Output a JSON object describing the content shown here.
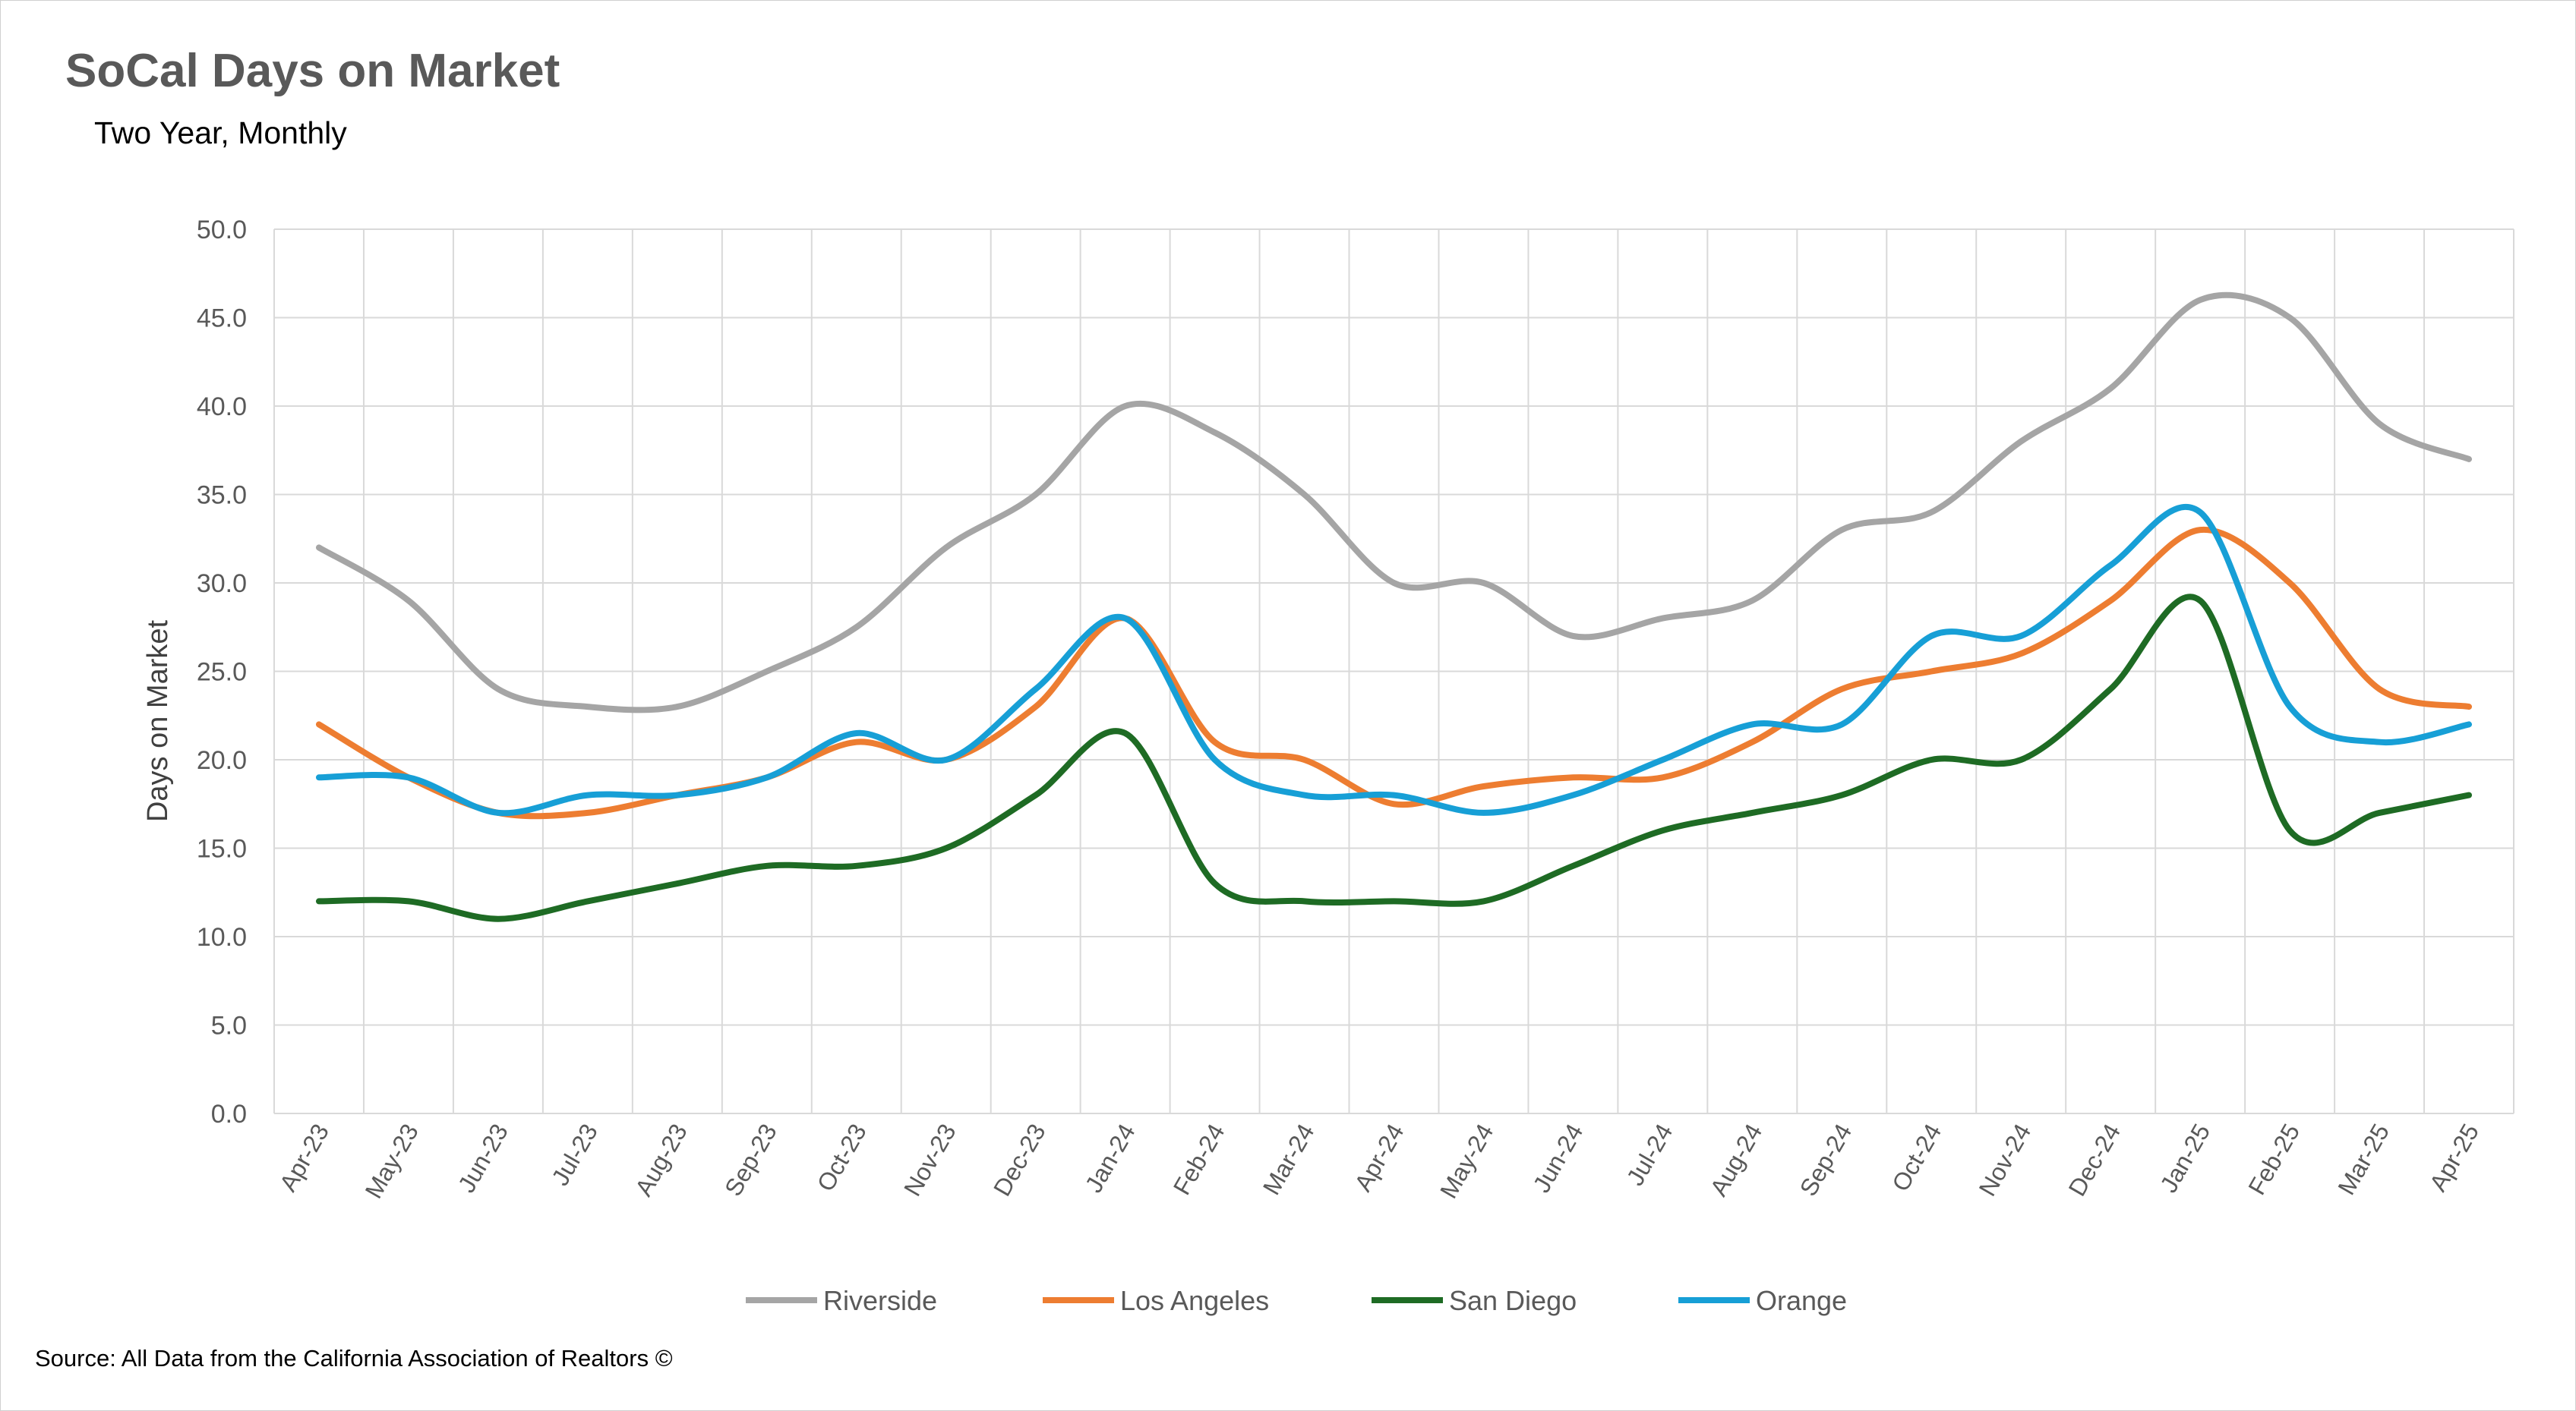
{
  "chart_data": {
    "type": "line",
    "title": "SoCal Days on Market",
    "subtitle": "Two Year, Monthly",
    "ylabel": "Days on Market",
    "xlabel": "",
    "ylim": [
      0,
      50
    ],
    "yticks": [
      "0.0",
      "5.0",
      "10.0",
      "15.0",
      "20.0",
      "25.0",
      "30.0",
      "35.0",
      "40.0",
      "45.0",
      "50.0"
    ],
    "grid": true,
    "legend_position": "bottom",
    "categories": [
      "Apr-23",
      "May-23",
      "Jun-23",
      "Jul-23",
      "Aug-23",
      "Sep-23",
      "Oct-23",
      "Nov-23",
      "Dec-23",
      "Jan-24",
      "Feb-24",
      "Mar-24",
      "Apr-24",
      "May-24",
      "Jun-24",
      "Jul-24",
      "Aug-24",
      "Sep-24",
      "Oct-24",
      "Nov-24",
      "Dec-24",
      "Jan-25",
      "Feb-25",
      "Mar-25",
      "Apr-25"
    ],
    "series": [
      {
        "name": "Riverside",
        "color": "#a5a5a5",
        "values": [
          32,
          29,
          24,
          23,
          23,
          25,
          27.5,
          32,
          35,
          40,
          38.5,
          35,
          30,
          30,
          27,
          28,
          29,
          33,
          34,
          38,
          41,
          46,
          45,
          39,
          37
        ]
      },
      {
        "name": "Los Angeles",
        "color": "#ed7d31",
        "values": [
          22,
          19,
          17,
          17,
          18,
          19,
          21,
          20,
          23,
          28,
          21,
          20,
          17.5,
          18.5,
          19,
          19,
          21,
          24,
          25,
          26,
          29,
          33,
          30,
          24,
          23
        ]
      },
      {
        "name": "San Diego",
        "color": "#1e6b24",
        "values": [
          12,
          12,
          11,
          12,
          13,
          14,
          14,
          15,
          18,
          21.5,
          13,
          12,
          12,
          12,
          14,
          16,
          17,
          18,
          20,
          20,
          24,
          29,
          16,
          17,
          18
        ]
      },
      {
        "name": "Orange",
        "color": "#179fd6",
        "values": [
          19,
          19,
          17,
          18,
          18,
          19,
          21.5,
          20,
          24,
          28,
          20,
          18,
          18,
          17,
          18,
          20,
          22,
          22,
          27,
          27,
          31,
          34,
          23,
          21,
          22
        ]
      }
    ]
  },
  "source": "Source: All Data from the California Association of Realtors ©"
}
